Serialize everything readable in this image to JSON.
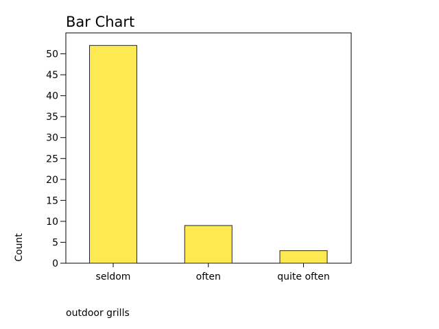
{
  "chart_data": {
    "type": "bar",
    "title": "Bar Chart",
    "xlabel": "outdoor grills",
    "ylabel": "Count",
    "categories": [
      "seldom",
      "often",
      "quite often"
    ],
    "values": [
      52,
      9,
      3
    ],
    "ylim": [
      0,
      55
    ],
    "yticks": [
      0,
      5,
      10,
      15,
      20,
      25,
      30,
      35,
      40,
      45,
      50
    ],
    "grid": false,
    "legend": "none",
    "colors": {
      "bar_fill": "#fde952",
      "bar_stroke": "#222222",
      "axis": "#000000"
    }
  }
}
